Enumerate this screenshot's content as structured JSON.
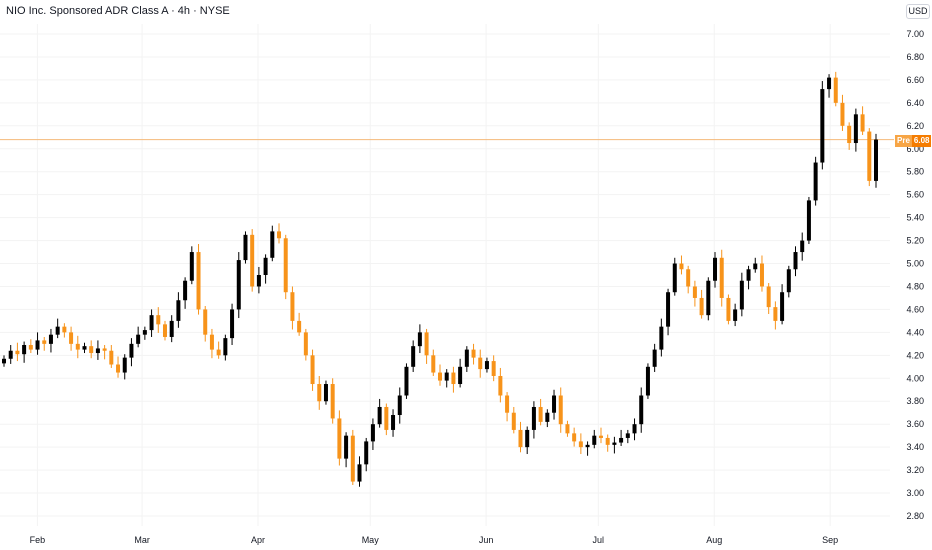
{
  "header": {
    "title": "NIO Inc. Sponsored ADR Class A · 4h · NYSE",
    "currency": "USD"
  },
  "colors": {
    "up": "#000000",
    "down": "#f7931a",
    "grid": "#f3f3f3",
    "last_price_line": "#f5b97a",
    "badge": "#f57c00"
  },
  "price_marker": {
    "label": "Pre",
    "value": "6.08"
  },
  "chart_data": {
    "type": "candlestick",
    "title": "NIO Inc. Sponsored ADR Class A · 4h · NYSE",
    "xlabel": "",
    "ylabel": "",
    "ylim": [
      2.75,
      7.05
    ],
    "y_ticks": [
      "7.00",
      "6.80",
      "6.60",
      "6.40",
      "6.20",
      "6.00",
      "5.80",
      "5.60",
      "5.40",
      "5.20",
      "5.00",
      "4.80",
      "4.60",
      "4.40",
      "4.20",
      "4.00",
      "3.80",
      "3.60",
      "3.40",
      "3.20",
      "3.00",
      "2.80"
    ],
    "x_ticks": [
      {
        "label": "Feb",
        "day": 31
      },
      {
        "label": "Mar",
        "day": 59
      },
      {
        "label": "Apr",
        "day": 90
      },
      {
        "label": "May",
        "day": 120
      },
      {
        "label": "Jun",
        "day": 151
      },
      {
        "label": "Jul",
        "day": 181
      },
      {
        "label": "Aug",
        "day": 212
      },
      {
        "label": "Sep",
        "day": 243
      }
    ],
    "x_range_days": [
      21,
      259
    ],
    "grid": true,
    "last_price": 6.08,
    "candles_close": [
      4.17,
      4.24,
      4.21,
      4.29,
      4.25,
      4.33,
      4.3,
      4.38,
      4.45,
      4.4,
      4.3,
      4.25,
      4.28,
      4.22,
      4.26,
      4.24,
      4.12,
      4.05,
      4.18,
      4.3,
      4.38,
      4.42,
      4.55,
      4.47,
      4.36,
      4.5,
      4.68,
      4.85,
      5.1,
      4.6,
      4.38,
      4.25,
      4.2,
      4.35,
      4.6,
      5.03,
      5.25,
      4.8,
      4.9,
      5.05,
      5.28,
      5.22,
      4.75,
      4.5,
      4.4,
      4.2,
      3.95,
      3.8,
      3.95,
      3.65,
      3.3,
      3.5,
      3.1,
      3.25,
      3.45,
      3.6,
      3.75,
      3.55,
      3.68,
      3.85,
      4.1,
      4.28,
      4.4,
      4.2,
      4.05,
      3.98,
      4.05,
      3.95,
      4.1,
      4.25,
      4.18,
      4.08,
      4.15,
      4.02,
      3.85,
      3.7,
      3.55,
      3.4,
      3.55,
      3.75,
      3.62,
      3.7,
      3.85,
      3.6,
      3.52,
      3.45,
      3.4,
      3.42,
      3.5,
      3.48,
      3.42,
      3.44,
      3.48,
      3.52,
      3.6,
      3.85,
      4.1,
      4.25,
      4.45,
      4.75,
      5.0,
      4.95,
      4.8,
      4.7,
      4.55,
      4.85,
      5.05,
      4.7,
      4.5,
      4.6,
      4.85,
      4.95,
      5.0,
      4.8,
      4.62,
      4.5,
      4.75,
      4.95,
      5.1,
      5.2,
      5.55,
      5.88,
      6.52,
      6.62,
      6.4,
      6.2,
      6.05,
      6.3,
      6.15,
      5.72,
      6.08
    ]
  }
}
